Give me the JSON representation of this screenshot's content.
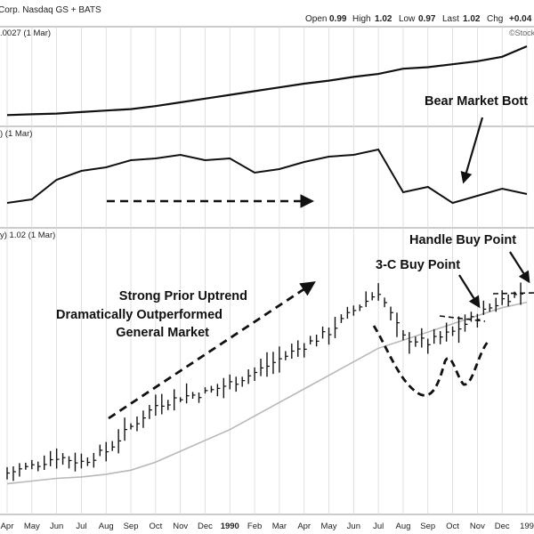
{
  "header": {
    "symbol_text": "Corp. Nasdaq GS + BATS",
    "open_label": "Open",
    "open_value": "0.99",
    "high_label": "High",
    "high_value": "1.02",
    "low_label": "Low",
    "low_value": "0.97",
    "last_label": "Last",
    "last_value": "1.02",
    "chg_label": "Chg",
    "chg_value": "+0.04",
    "watermark": "©Stock"
  },
  "panels": [
    {
      "label": ".0027 (1 Mar)"
    },
    {
      "label": ") (1 Mar)"
    },
    {
      "label": "y) 1.02 (1 Mar)"
    }
  ],
  "x_axis": {
    "labels": [
      "Apr",
      "May",
      "Jun",
      "Jul",
      "Aug",
      "Sep",
      "Oct",
      "Nov",
      "Dec",
      "1990",
      "Feb",
      "Mar",
      "Apr",
      "May",
      "Jun",
      "Jul",
      "Aug",
      "Sep",
      "Oct",
      "Nov",
      "Dec",
      "199"
    ],
    "bold_label": "1990"
  },
  "annotations": {
    "bear_market": "Bear Market Bott",
    "handle_buy": "Handle Buy Point",
    "three_c_buy": "3-C Buy Point",
    "uptrend_line1": "Strong Prior Uptrend",
    "uptrend_line2": "Dramatically Outperformed",
    "uptrend_line3": "General Market"
  },
  "chart_data": {
    "type": "line",
    "x": [
      "Apr",
      "May",
      "Jun",
      "Jul",
      "Aug",
      "Sep",
      "Oct",
      "Nov",
      "Dec",
      "1990",
      "Feb",
      "Mar",
      "Apr",
      "May",
      "Jun",
      "Jul",
      "Aug",
      "Sep",
      "Oct",
      "Nov",
      "Dec",
      "199"
    ],
    "series": [
      {
        "values": [
          8,
          9,
          10,
          12,
          14,
          16,
          20,
          25,
          30,
          35,
          40,
          45,
          50,
          54,
          59,
          63,
          70,
          72,
          76,
          80,
          86,
          100
        ]
      },
      {
        "values": [
          22,
          26,
          48,
          58,
          62,
          70,
          72,
          76,
          70,
          72,
          56,
          60,
          68,
          74,
          76,
          82,
          34,
          40,
          22,
          30,
          38,
          32
        ]
      },
      {
        "values": [
          28,
          33,
          40,
          36,
          44,
          62,
          78,
          84,
          87,
          94,
          102,
          112,
          122,
          132,
          148,
          162,
          128,
          124,
          132,
          144,
          156,
          162
        ]
      },
      {
        "values": [
          20,
          22,
          24,
          25,
          27,
          30,
          36,
          44,
          52,
          60,
          70,
          80,
          90,
          100,
          110,
          120,
          126,
          132,
          138,
          144,
          150,
          154
        ]
      }
    ],
    "grid": true
  }
}
